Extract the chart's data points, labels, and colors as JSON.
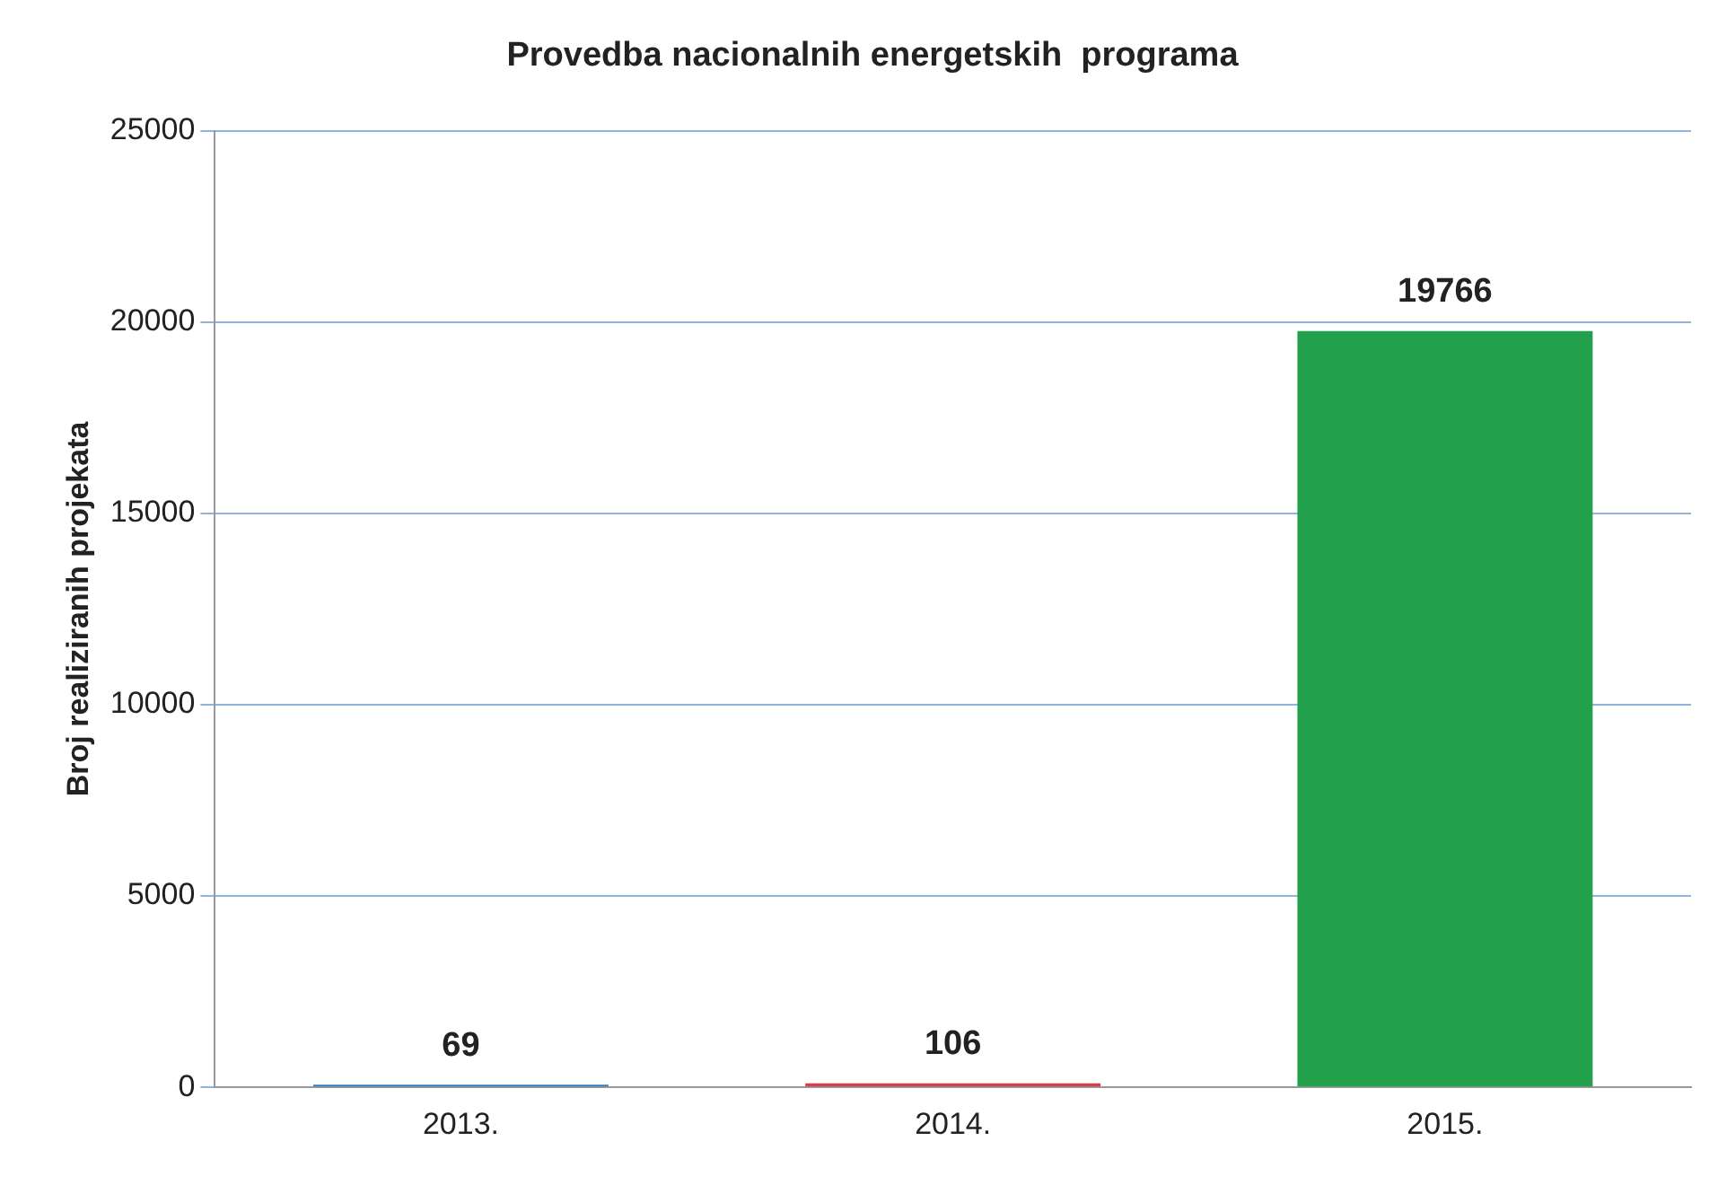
{
  "chart_data": {
    "type": "bar",
    "title": "Provedba nacionalnih energetskih  programa",
    "ylabel": "Broj realiziranih projekata",
    "categories": [
      "2013.",
      "2014.",
      "2015."
    ],
    "values": [
      69,
      106,
      19766
    ],
    "colors": [
      "#3a7cc4",
      "#d6404a",
      "#22a04b"
    ],
    "ylim": [
      0,
      25000
    ],
    "yticks": [
      0,
      5000,
      10000,
      15000,
      20000,
      25000
    ],
    "grid": "y",
    "data_labels": true,
    "legend": false
  }
}
